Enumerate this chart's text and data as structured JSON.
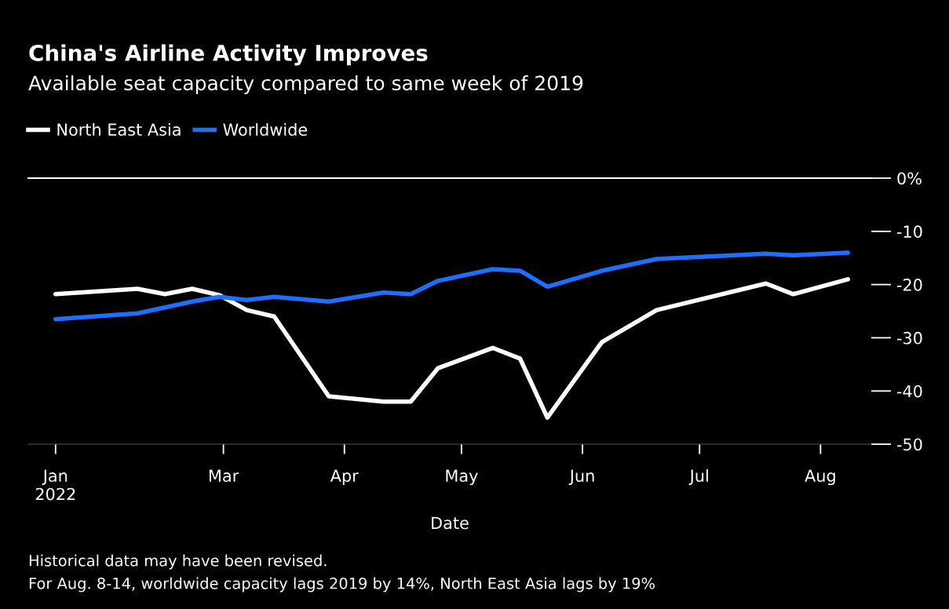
{
  "chart_data": {
    "type": "line",
    "title": "China's Airline Activity Improves",
    "subtitle": "Available seat capacity compared to same week of 2019",
    "xlabel": "Date",
    "x": [
      "2022-01-17",
      "2022-02-07",
      "2022-02-14",
      "2022-02-21",
      "2022-02-28",
      "2022-03-07",
      "2022-03-14",
      "2022-03-28",
      "2022-04-11",
      "2022-04-18",
      "2022-04-25",
      "2022-05-09",
      "2022-05-16",
      "2022-05-23",
      "2022-06-06",
      "2022-06-20",
      "2022-07-18",
      "2022-07-25",
      "2022-08-08"
    ],
    "series": [
      {
        "name": "North East Asia",
        "color": "#ffffff",
        "values": [
          -21.8,
          -20.8,
          -21.8,
          -20.8,
          -22,
          -24.8,
          -26,
          -41,
          -42,
          -42,
          -35.7,
          -31.9,
          -33.9,
          -45,
          -30.8,
          -24.8,
          -19.8,
          -21.8,
          -19
        ]
      },
      {
        "name": "Worldwide",
        "color": "#1f6fff",
        "values": [
          -26.5,
          -25.4,
          -24.3,
          -23.2,
          -22.3,
          -22.9,
          -22.3,
          -23.2,
          -21.5,
          -21.8,
          -19.3,
          -17.1,
          -17.4,
          -20.4,
          -17.4,
          -15.2,
          -14.2,
          -14.5,
          -14
        ]
      }
    ],
    "xticks": [
      {
        "value": "2022-01-17",
        "label": "Jan\n2022"
      },
      {
        "value": "2022-03-01",
        "label": "Mar"
      },
      {
        "value": "2022-04-01",
        "label": "Apr"
      },
      {
        "value": "2022-05-01",
        "label": "May"
      },
      {
        "value": "2022-06-01",
        "label": "Jun"
      },
      {
        "value": "2022-07-01",
        "label": "Jul"
      },
      {
        "value": "2022-08-01",
        "label": "Aug"
      }
    ],
    "xlim": [
      "2022-01-10",
      "2022-08-14"
    ],
    "ylim": [
      -50,
      0
    ],
    "yticks": [
      {
        "value": 0,
        "label": "0%"
      },
      -10,
      -20,
      -30,
      -40,
      -50
    ],
    "ref_lines": [
      {
        "axis": "y",
        "value": 0,
        "color": "#ffffff"
      }
    ],
    "grid": false,
    "legend": "top left",
    "marker": "none",
    "line_style": "solid",
    "annotations": [
      "Historical data may have been revised.",
      "For Aug. 8-14, worldwide capacity lags 2019 by 14%, North East Asia lags by 19%"
    ]
  }
}
